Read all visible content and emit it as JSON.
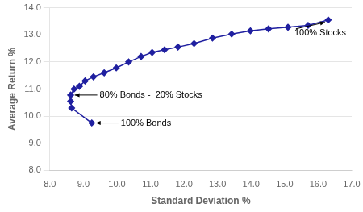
{
  "chart_data": {
    "type": "line",
    "xlabel": "Standard Deviation %",
    "ylabel": "Average Return %",
    "x": [
      9.25,
      8.65,
      8.62,
      8.62,
      8.72,
      8.88,
      9.05,
      9.3,
      9.62,
      9.98,
      10.35,
      10.72,
      11.05,
      11.42,
      11.82,
      12.3,
      12.85,
      13.42,
      13.98,
      14.52,
      15.1,
      15.7,
      16.3
    ],
    "values": [
      9.75,
      10.3,
      10.55,
      10.78,
      11.0,
      11.1,
      11.3,
      11.45,
      11.6,
      11.78,
      12.0,
      12.2,
      12.35,
      12.45,
      12.55,
      12.68,
      12.88,
      13.03,
      13.15,
      13.22,
      13.28,
      13.35,
      13.55
    ],
    "color": "#2020a0",
    "marker": "diamond",
    "xlim": [
      8.0,
      17.0
    ],
    "ylim": [
      8.0,
      14.0
    ],
    "xticks": [
      {
        "value": 8,
        "label": "8.0"
      },
      {
        "value": 9,
        "label": "9.0"
      },
      {
        "value": 10,
        "label": "10.0"
      },
      {
        "value": 11,
        "label": "11.0"
      },
      {
        "value": 12,
        "label": "12.0"
      },
      {
        "value": 13,
        "label": "13.0"
      },
      {
        "value": 14,
        "label": "14.0"
      },
      {
        "value": 15,
        "label": "15.0"
      },
      {
        "value": 16,
        "label": "16.0"
      },
      {
        "value": 17,
        "label": "17.0"
      }
    ],
    "yticks": [
      {
        "value": 8,
        "label": "8.0"
      },
      {
        "value": 9,
        "label": "9.0"
      },
      {
        "value": 10,
        "label": "10.0"
      },
      {
        "value": 11,
        "label": "11.0"
      },
      {
        "value": 12,
        "label": "12.0"
      },
      {
        "value": 13,
        "label": "13.0"
      },
      {
        "value": 14,
        "label": "14.0"
      }
    ],
    "grid": "y",
    "annotations": [
      {
        "text": "100% Bonds",
        "x": 9.25,
        "y": 9.75
      },
      {
        "text": "80% Bonds -  20% Stocks",
        "x": 8.62,
        "y": 10.78
      },
      {
        "text": "100% Stocks",
        "x": 16.3,
        "y": 13.55
      }
    ]
  }
}
